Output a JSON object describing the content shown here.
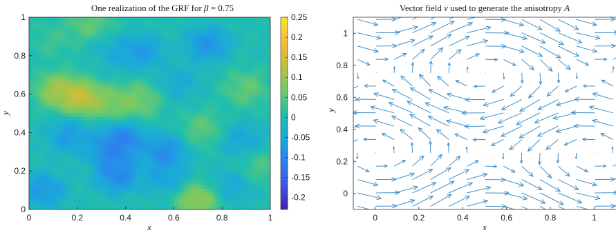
{
  "chart_data": [
    {
      "type": "heatmap",
      "title": "One realization of the GRF for β = 0.75",
      "title_prefix": "One realization of the GRF for ",
      "title_symbol": "β",
      "title_suffix": " = 0.75",
      "xlabel": "x",
      "ylabel": "y",
      "xlim": [
        0,
        1
      ],
      "ylim": [
        0,
        1
      ],
      "xticks": [
        "0",
        "0.2",
        "0.4",
        "0.6",
        "0.8",
        "1"
      ],
      "yticks": [
        "0",
        "0.2",
        "0.4",
        "0.6",
        "0.8",
        "1"
      ],
      "colorbar": {
        "range": [
          -0.23,
          0.25
        ],
        "ticks": [
          "-0.2",
          "-0.15",
          "-0.1",
          "-0.05",
          "0",
          "0.05",
          "0.1",
          "0.15",
          "0.2",
          "0.25"
        ],
        "colormap": "parula"
      },
      "colormap_stops": [
        "#3e26a8",
        "#4253e8",
        "#2d81ef",
        "#1ba9da",
        "#23bfaa",
        "#72ca67",
        "#c4bf3a",
        "#f8ba3d",
        "#f5e829"
      ],
      "features": [
        {
          "x": 0.22,
          "y": 0.58,
          "value": 0.23
        },
        {
          "x": 0.12,
          "y": 0.62,
          "value": 0.18
        },
        {
          "x": 0.35,
          "y": 0.55,
          "value": 0.13
        },
        {
          "x": 0.46,
          "y": 0.57,
          "value": 0.12
        },
        {
          "x": 0.7,
          "y": 0.05,
          "value": 0.17
        },
        {
          "x": 0.25,
          "y": 0.96,
          "value": 0.1
        },
        {
          "x": 0.9,
          "y": 0.63,
          "value": 0.1
        },
        {
          "x": 0.72,
          "y": 0.42,
          "value": 0.09
        },
        {
          "x": 0.3,
          "y": 0.78,
          "value": 0.06
        },
        {
          "x": 0.96,
          "y": 0.22,
          "value": 0.07
        },
        {
          "x": 0.1,
          "y": 0.88,
          "value": 0.05
        },
        {
          "x": 0.34,
          "y": 0.3,
          "value": -0.16
        },
        {
          "x": 0.39,
          "y": 0.37,
          "value": -0.17
        },
        {
          "x": 0.37,
          "y": 0.18,
          "value": -0.17
        },
        {
          "x": 0.56,
          "y": 0.3,
          "value": -0.16
        },
        {
          "x": 0.06,
          "y": 0.1,
          "value": -0.13
        },
        {
          "x": 0.17,
          "y": 0.38,
          "value": -0.12
        },
        {
          "x": 0.33,
          "y": 0.8,
          "value": -0.14
        },
        {
          "x": 0.47,
          "y": 0.82,
          "value": -0.12
        },
        {
          "x": 0.74,
          "y": 0.86,
          "value": -0.14
        },
        {
          "x": 0.57,
          "y": 0.17,
          "value": -0.1
        },
        {
          "x": 0.88,
          "y": 0.36,
          "value": -0.09
        },
        {
          "x": 0.62,
          "y": 0.66,
          "value": -0.07
        },
        {
          "x": 0.84,
          "y": 0.12,
          "value": -0.08
        }
      ]
    },
    {
      "type": "quiver",
      "title": "Vector field v used to generate the anisotropy A",
      "title_prefix": "Vector field ",
      "title_v": "v",
      "title_middle": " used to generate the anisotropy ",
      "title_A": "A",
      "xlabel": "x",
      "ylabel": "y",
      "xlim": [
        -0.1,
        1.1
      ],
      "ylim": [
        -0.1,
        1.1
      ],
      "xticks": [
        "0",
        "0.2",
        "0.4",
        "0.6",
        "0.8",
        "1"
      ],
      "yticks": [
        "0",
        "0.2",
        "0.4",
        "0.6",
        "0.8",
        "1"
      ],
      "arrow_color": "#3d8fc9",
      "grid_spacing": 0.0833,
      "field": "v(x,y) = (cos 2πy, 0.5·sin 2πx)"
    }
  ]
}
